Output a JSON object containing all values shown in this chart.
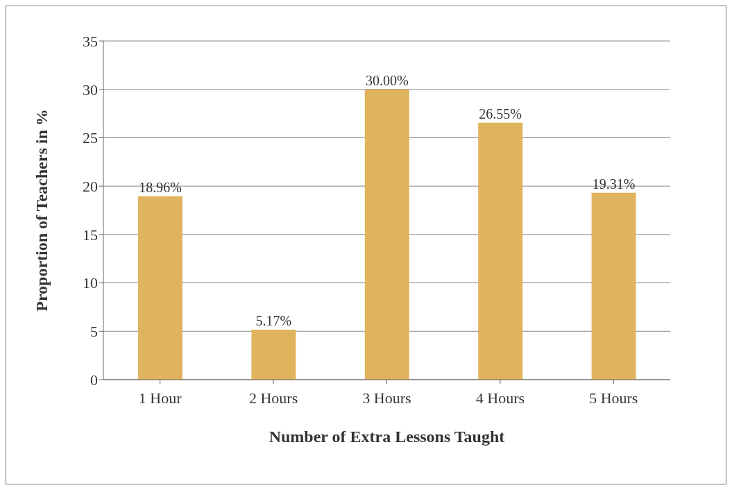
{
  "chart_data": {
    "type": "bar",
    "xlabel": "Number of Extra Lessons Taught",
    "ylabel": "Proportion of Teachers in %",
    "categories": [
      "1 Hour",
      "2 Hours",
      "3 Hours",
      "4 Hours",
      "5 Hours"
    ],
    "values": [
      18.96,
      5.17,
      30.0,
      26.55,
      19.31
    ],
    "value_labels": [
      "18.96%",
      "5.17%",
      "30.00%",
      "26.55%",
      "19.31%"
    ],
    "color": "#e0b45e",
    "ylim": [
      0,
      35
    ],
    "yticks": [
      0,
      5,
      10,
      15,
      20,
      25,
      30,
      35
    ],
    "grid": "y"
  }
}
